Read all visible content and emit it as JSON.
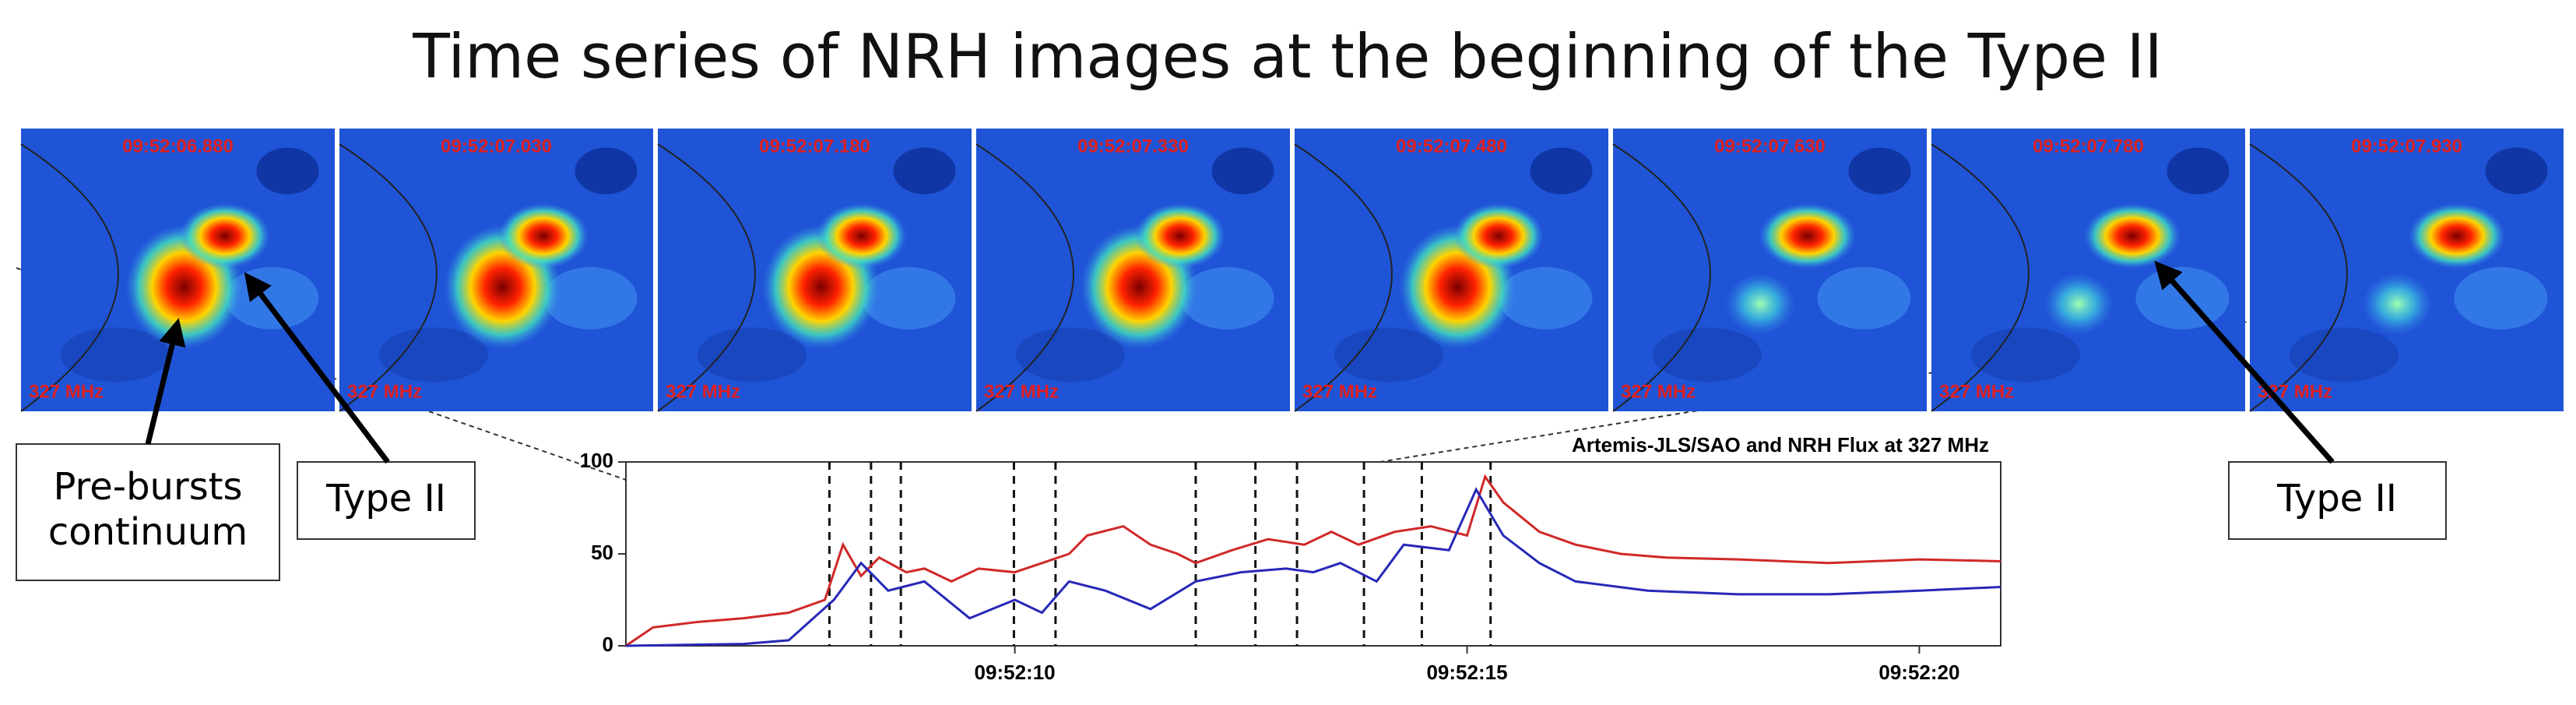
{
  "title": "Time series of NRH images at the beginning of the Type II",
  "panels": [
    {
      "time": "09:52:06.880",
      "frequency": "327 MHz"
    },
    {
      "time": "09:52:07.030",
      "frequency": "327 MHz"
    },
    {
      "time": "09:52:07.180",
      "frequency": "327 MHz"
    },
    {
      "time": "09:52:07.330",
      "frequency": "327 MHz"
    },
    {
      "time": "09:52:07.480",
      "frequency": "327 MHz"
    },
    {
      "time": "09:52:07.630",
      "frequency": "327 MHz"
    },
    {
      "time": "09:52:07.780",
      "frequency": "327 MHz"
    },
    {
      "time": "09:52:07.930",
      "frequency": "327 MHz"
    }
  ],
  "annotations": {
    "pre_bursts": "Pre-bursts continuum",
    "type_ii_left": "Type II",
    "type_ii_right": "Type II"
  },
  "chart_data": {
    "type": "line",
    "title": "Artemis-JLS/SAO and NRH Flux at 327 MHz",
    "xlim": [
      5.7,
      20.9
    ],
    "ylim": [
      0,
      100
    ],
    "yticks": [
      0,
      50,
      100
    ],
    "xticks": [
      {
        "value": 10,
        "label": "09:52:10"
      },
      {
        "value": 15,
        "label": "09:52:15"
      },
      {
        "value": 20,
        "label": "09:52:20"
      }
    ],
    "markers": [
      7.95,
      8.41,
      8.74,
      9.99,
      10.45,
      12.0,
      12.66,
      13.12,
      13.86,
      14.5,
      15.26
    ],
    "series": [
      {
        "color": "#d02828",
        "x": [
          5.7,
          6.0,
          6.5,
          7.0,
          7.5,
          7.9,
          8.1,
          8.3,
          8.5,
          8.8,
          9.0,
          9.3,
          9.6,
          10.0,
          10.3,
          10.6,
          10.8,
          11.2,
          11.5,
          11.8,
          12.0,
          12.4,
          12.8,
          13.2,
          13.5,
          13.8,
          14.2,
          14.6,
          15.0,
          15.2,
          15.4,
          15.8,
          16.2,
          16.7,
          17.2,
          18.0,
          19.0,
          20.0,
          20.9
        ],
        "values": [
          0,
          10,
          13,
          15,
          18,
          25,
          55,
          38,
          48,
          40,
          42,
          35,
          42,
          40,
          45,
          50,
          60,
          65,
          55,
          50,
          45,
          52,
          58,
          55,
          62,
          55,
          62,
          65,
          60,
          92,
          78,
          62,
          55,
          50,
          48,
          47,
          45,
          47,
          46
        ]
      },
      {
        "color": "#2828b8",
        "x": [
          5.7,
          7.0,
          7.5,
          8.0,
          8.3,
          8.6,
          9.0,
          9.5,
          10.0,
          10.3,
          10.6,
          11.0,
          11.5,
          12.0,
          12.5,
          13.0,
          13.3,
          13.6,
          14.0,
          14.3,
          14.8,
          15.1,
          15.4,
          15.8,
          16.2,
          17.0,
          18.0,
          19.0,
          20.0,
          20.9
        ],
        "values": [
          0,
          1,
          3,
          25,
          45,
          30,
          35,
          15,
          25,
          18,
          35,
          30,
          20,
          35,
          40,
          42,
          40,
          45,
          35,
          55,
          52,
          85,
          60,
          45,
          35,
          30,
          28,
          28,
          30,
          32
        ]
      }
    ]
  }
}
